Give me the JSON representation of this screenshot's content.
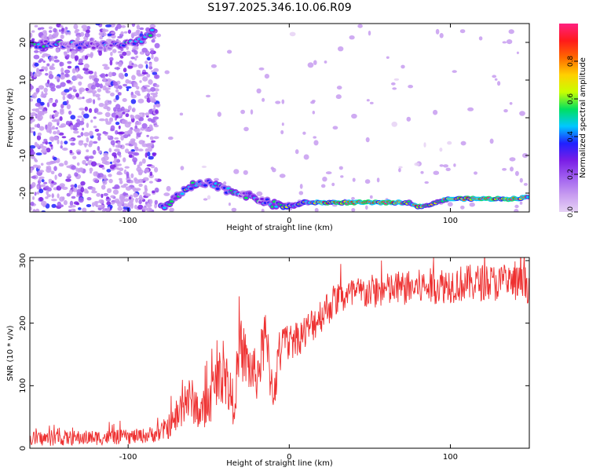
{
  "title": "S197.2025.346.10.06.R09",
  "colors": {
    "snr_line": "#ee3030",
    "background": "#ffffff",
    "colormap": [
      "#ffffff",
      "#e6d2f5",
      "#c79cf0",
      "#a060f0",
      "#7a1ee6",
      "#2020ff",
      "#00c8ff",
      "#00e060",
      "#c8ff00",
      "#ffd000",
      "#ff6a00",
      "#ff1a1a",
      "#ff2080"
    ]
  },
  "chart_data": [
    {
      "type": "heatmap",
      "title": "",
      "xlabel": "Height of straight line (km)",
      "ylabel": "Frequency (Hz)",
      "xlim": [
        -161,
        149
      ],
      "ylim": [
        -25,
        25
      ],
      "xticks": [
        -100,
        0,
        100
      ],
      "xtick_labels": [
        "-100",
        "0",
        "100"
      ],
      "yticks": [
        20,
        10,
        0,
        -10,
        -20
      ],
      "ytick_labels": [
        "20",
        "10",
        "0",
        "-10",
        "-20"
      ],
      "colorbar": {
        "label": "Normalized spectral amplitude",
        "range": [
          0,
          1
        ],
        "ticks": [
          0.0,
          0.2,
          0.4,
          0.6,
          0.8
        ],
        "tick_labels": [
          "0.0",
          "0.2",
          "0.4",
          "0.6",
          "0.8"
        ]
      },
      "ridge": {
        "description_x_km": [
          -161,
          -140,
          -120,
          -100,
          -90,
          -85,
          -80,
          -75,
          -70,
          -60,
          -50,
          -40,
          -30,
          -20,
          -10,
          0,
          10,
          20,
          40,
          60,
          70,
          75,
          80,
          85,
          90,
          100,
          120,
          140,
          149
        ],
        "frequency_hz": [
          19.5,
          19.5,
          19.0,
          19.5,
          20.5,
          23.0,
          -23.5,
          -23.0,
          -21.0,
          -18.0,
          -17.5,
          -19.0,
          -20.0,
          -21.5,
          -23.0,
          -23.5,
          -22.5,
          -22.5,
          -22.5,
          -22.5,
          -22.5,
          -22.5,
          -23.5,
          -23.5,
          -22.5,
          -21.5,
          -21.5,
          -21.5,
          -21.0
        ],
        "amplitude": [
          0.45,
          0.4,
          0.35,
          0.45,
          0.45,
          0.5,
          0.45,
          0.4,
          0.5,
          0.5,
          0.45,
          0.45,
          0.45,
          0.4,
          0.5,
          0.55,
          0.55,
          0.8,
          0.9,
          0.9,
          0.7,
          0.6,
          0.85,
          0.7,
          0.6,
          0.8,
          0.85,
          0.9,
          0.6
        ]
      }
    },
    {
      "type": "line",
      "title": "",
      "xlabel": "Height of straight line (km)",
      "ylabel": "SNR (10 * v/v)",
      "xlim": [
        -161,
        149
      ],
      "ylim": [
        0,
        305
      ],
      "xticks": [
        -100,
        0,
        100
      ],
      "xtick_labels": [
        "-100",
        "0",
        "100"
      ],
      "yticks": [
        0,
        100,
        200,
        300
      ],
      "ytick_labels": [
        "0",
        "100",
        "200",
        "300"
      ],
      "series": [
        {
          "name": "SNR",
          "x": [
            -161,
            -140,
            -120,
            -100,
            -90,
            -80,
            -70,
            -65,
            -60,
            -55,
            -50,
            -45,
            -40,
            -35,
            -30,
            -25,
            -20,
            -15,
            -10,
            -5,
            0,
            10,
            20,
            30,
            50,
            70,
            100,
            120,
            149
          ],
          "values": [
            15,
            16,
            17,
            18,
            20,
            25,
            45,
            80,
            75,
            55,
            70,
            110,
            120,
            70,
            160,
            130,
            115,
            175,
            90,
            160,
            170,
            185,
            215,
            240,
            250,
            255,
            262,
            265,
            262
          ],
          "noise_amplitude": [
            12,
            12,
            12,
            12,
            12,
            15,
            25,
            40,
            35,
            30,
            40,
            40,
            50,
            40,
            50,
            45,
            40,
            50,
            40,
            35,
            30,
            30,
            30,
            28,
            28,
            28,
            30,
            30,
            30
          ]
        }
      ]
    }
  ]
}
